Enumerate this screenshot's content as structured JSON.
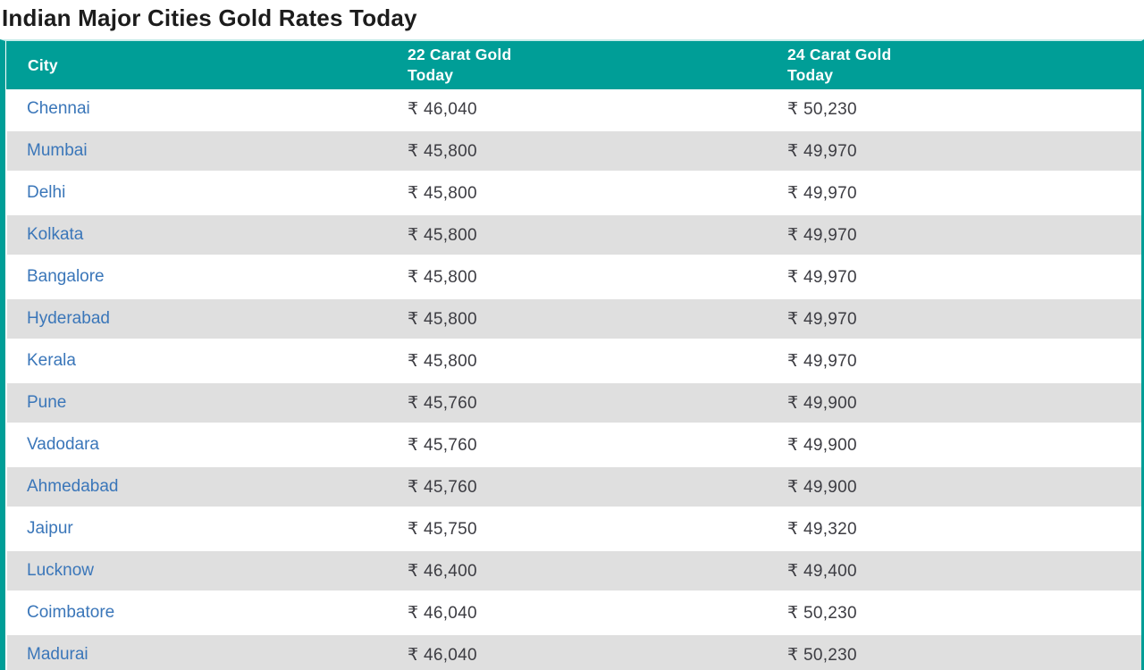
{
  "title": "Indian Major Cities Gold Rates Today",
  "colors": {
    "header_bg_teal": "#009e97",
    "header_text": "#ffffff",
    "row_alt_bg": "#dfdfdf",
    "city_link_blue": "#3a76b9",
    "value_text": "#3c3c42",
    "title_text": "#1c1c1c"
  },
  "table": {
    "columns": [
      {
        "label": "City"
      },
      {
        "label": "22 Carat Gold\nToday"
      },
      {
        "label": "24 Carat Gold\nToday"
      }
    ],
    "rows": [
      {
        "city": "Chennai",
        "carat22": "₹ 46,040",
        "carat24": "₹ 50,230"
      },
      {
        "city": "Mumbai",
        "carat22": "₹ 45,800",
        "carat24": "₹ 49,970"
      },
      {
        "city": "Delhi",
        "carat22": "₹ 45,800",
        "carat24": "₹ 49,970"
      },
      {
        "city": "Kolkata",
        "carat22": "₹ 45,800",
        "carat24": "₹ 49,970"
      },
      {
        "city": "Bangalore",
        "carat22": "₹ 45,800",
        "carat24": "₹ 49,970"
      },
      {
        "city": "Hyderabad",
        "carat22": "₹ 45,800",
        "carat24": "₹ 49,970"
      },
      {
        "city": "Kerala",
        "carat22": "₹ 45,800",
        "carat24": "₹ 49,970"
      },
      {
        "city": "Pune",
        "carat22": "₹ 45,760",
        "carat24": "₹ 49,900"
      },
      {
        "city": "Vadodara",
        "carat22": "₹ 45,760",
        "carat24": "₹ 49,900"
      },
      {
        "city": "Ahmedabad",
        "carat22": "₹ 45,760",
        "carat24": "₹ 49,900"
      },
      {
        "city": "Jaipur",
        "carat22": "₹ 45,750",
        "carat24": "₹ 49,320"
      },
      {
        "city": "Lucknow",
        "carat22": "₹ 46,400",
        "carat24": "₹ 49,400"
      },
      {
        "city": "Coimbatore",
        "carat22": "₹ 46,040",
        "carat24": "₹ 50,230"
      },
      {
        "city": "Madurai",
        "carat22": "₹ 46,040",
        "carat24": "₹ 50,230"
      }
    ]
  }
}
